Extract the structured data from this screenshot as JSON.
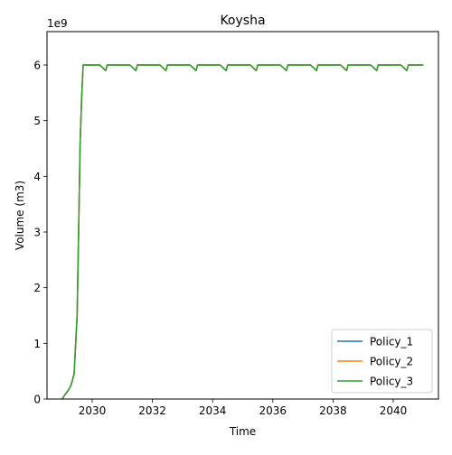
{
  "chart_data": {
    "type": "line",
    "title": "Koysha",
    "xlabel": "Time",
    "ylabel": "Volume (m3)",
    "y_scale_label": "1e9",
    "xlim": [
      2028.5,
      2041.5
    ],
    "ylim": [
      0,
      6.6
    ],
    "x_ticks": [
      2030,
      2032,
      2034,
      2036,
      2038,
      2040
    ],
    "x_tick_labels": [
      "2030",
      "2032",
      "2034",
      "2036",
      "2038",
      "2040"
    ],
    "y_ticks": [
      0,
      1,
      2,
      3,
      4,
      5,
      6
    ],
    "y_tick_labels": [
      "0",
      "1",
      "2",
      "3",
      "4",
      "5",
      "6"
    ],
    "grid": false,
    "legend": "lower right",
    "series": [
      {
        "name": "Policy_1",
        "color": "#1f77b4",
        "x": [
          2029.0,
          2029.1,
          2029.2,
          2029.3,
          2029.4,
          2029.5,
          2029.55,
          2029.6,
          2029.65,
          2029.7,
          2029.75,
          2030.0,
          2030.25,
          2030.35,
          2030.45,
          2030.5,
          2030.6,
          2031.25,
          2031.35,
          2031.45,
          2031.5,
          2031.6,
          2032.25,
          2032.35,
          2032.45,
          2032.5,
          2032.6,
          2033.25,
          2033.35,
          2033.45,
          2033.5,
          2033.6,
          2034.25,
          2034.35,
          2034.45,
          2034.5,
          2034.6,
          2035.25,
          2035.35,
          2035.45,
          2035.5,
          2035.6,
          2036.25,
          2036.35,
          2036.45,
          2036.5,
          2036.6,
          2037.25,
          2037.35,
          2037.45,
          2037.5,
          2037.6,
          2038.25,
          2038.35,
          2038.45,
          2038.5,
          2038.6,
          2039.25,
          2039.35,
          2039.45,
          2039.5,
          2039.6,
          2040.25,
          2040.35,
          2040.45,
          2040.5,
          2040.6,
          2041.0
        ],
        "values": [
          0.0,
          0.08,
          0.15,
          0.25,
          0.45,
          1.5,
          3.0,
          4.6,
          5.4,
          6.0,
          6.0,
          6.0,
          6.0,
          5.95,
          5.9,
          6.0,
          6.0,
          6.0,
          5.95,
          5.9,
          6.0,
          6.0,
          6.0,
          5.95,
          5.9,
          6.0,
          6.0,
          6.0,
          5.95,
          5.9,
          6.0,
          6.0,
          6.0,
          5.95,
          5.9,
          6.0,
          6.0,
          6.0,
          5.95,
          5.9,
          6.0,
          6.0,
          6.0,
          5.95,
          5.9,
          6.0,
          6.0,
          6.0,
          5.95,
          5.9,
          6.0,
          6.0,
          6.0,
          5.95,
          5.9,
          6.0,
          6.0,
          6.0,
          5.95,
          5.9,
          6.0,
          6.0,
          6.0,
          5.95,
          5.9,
          6.0,
          6.0,
          6.0
        ]
      },
      {
        "name": "Policy_2",
        "color": "#ff7f0e",
        "x": [
          2029.0,
          2029.1,
          2029.2,
          2029.3,
          2029.4,
          2029.5,
          2029.55,
          2029.6,
          2029.65,
          2029.7,
          2029.75,
          2030.0,
          2030.25,
          2030.35,
          2030.45,
          2030.5,
          2030.6,
          2031.25,
          2031.35,
          2031.45,
          2031.5,
          2031.6,
          2032.25,
          2032.35,
          2032.45,
          2032.5,
          2032.6,
          2033.25,
          2033.35,
          2033.45,
          2033.5,
          2033.6,
          2034.25,
          2034.35,
          2034.45,
          2034.5,
          2034.6,
          2035.25,
          2035.35,
          2035.45,
          2035.5,
          2035.6,
          2036.25,
          2036.35,
          2036.45,
          2036.5,
          2036.6,
          2037.25,
          2037.35,
          2037.45,
          2037.5,
          2037.6,
          2038.25,
          2038.35,
          2038.45,
          2038.5,
          2038.6,
          2039.25,
          2039.35,
          2039.45,
          2039.5,
          2039.6,
          2040.25,
          2040.35,
          2040.45,
          2040.5,
          2040.6,
          2041.0
        ],
        "values": [
          0.0,
          0.08,
          0.15,
          0.25,
          0.45,
          1.5,
          3.0,
          4.6,
          5.4,
          6.0,
          6.0,
          6.0,
          6.0,
          5.95,
          5.9,
          6.0,
          6.0,
          6.0,
          5.95,
          5.9,
          6.0,
          6.0,
          6.0,
          5.95,
          5.9,
          6.0,
          6.0,
          6.0,
          5.95,
          5.9,
          6.0,
          6.0,
          6.0,
          5.95,
          5.9,
          6.0,
          6.0,
          6.0,
          5.95,
          5.9,
          6.0,
          6.0,
          6.0,
          5.95,
          5.9,
          6.0,
          6.0,
          6.0,
          5.95,
          5.9,
          6.0,
          6.0,
          6.0,
          5.95,
          5.9,
          6.0,
          6.0,
          6.0,
          5.95,
          5.9,
          6.0,
          6.0,
          6.0,
          5.95,
          5.9,
          6.0,
          6.0,
          6.0
        ]
      },
      {
        "name": " Policy_3",
        "color": "#2ca02c",
        "x": [
          2029.0,
          2029.1,
          2029.2,
          2029.3,
          2029.4,
          2029.5,
          2029.55,
          2029.6,
          2029.65,
          2029.7,
          2029.75,
          2030.0,
          2030.25,
          2030.35,
          2030.45,
          2030.5,
          2030.6,
          2031.25,
          2031.35,
          2031.45,
          2031.5,
          2031.6,
          2032.25,
          2032.35,
          2032.45,
          2032.5,
          2032.6,
          2033.25,
          2033.35,
          2033.45,
          2033.5,
          2033.6,
          2034.25,
          2034.35,
          2034.45,
          2034.5,
          2034.6,
          2035.25,
          2035.35,
          2035.45,
          2035.5,
          2035.6,
          2036.25,
          2036.35,
          2036.45,
          2036.5,
          2036.6,
          2037.25,
          2037.35,
          2037.45,
          2037.5,
          2037.6,
          2038.25,
          2038.35,
          2038.45,
          2038.5,
          2038.6,
          2039.25,
          2039.35,
          2039.45,
          2039.5,
          2039.6,
          2040.25,
          2040.35,
          2040.45,
          2040.5,
          2040.6,
          2041.0
        ],
        "values": [
          0.0,
          0.08,
          0.15,
          0.25,
          0.45,
          1.5,
          3.0,
          4.6,
          5.4,
          6.0,
          6.0,
          6.0,
          6.0,
          5.95,
          5.9,
          6.0,
          6.0,
          6.0,
          5.95,
          5.9,
          6.0,
          6.0,
          6.0,
          5.95,
          5.9,
          6.0,
          6.0,
          6.0,
          5.95,
          5.9,
          6.0,
          6.0,
          6.0,
          5.95,
          5.9,
          6.0,
          6.0,
          6.0,
          5.95,
          5.9,
          6.0,
          6.0,
          6.0,
          5.95,
          5.9,
          6.0,
          6.0,
          6.0,
          5.95,
          5.9,
          6.0,
          6.0,
          6.0,
          5.95,
          5.9,
          6.0,
          6.0,
          6.0,
          5.95,
          5.9,
          6.0,
          6.0,
          6.0,
          5.95,
          5.9,
          6.0,
          6.0,
          6.0
        ]
      }
    ]
  }
}
